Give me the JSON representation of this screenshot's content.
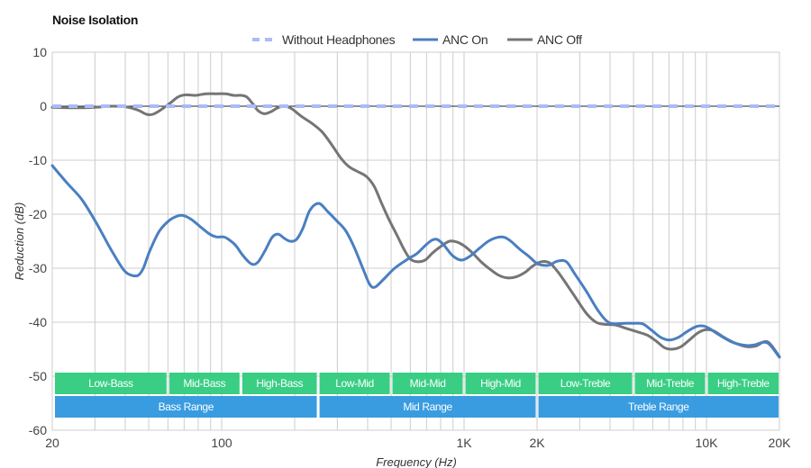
{
  "chart_data": {
    "type": "line",
    "title": "Noise Isolation",
    "xlabel": "Frequency (Hz)",
    "ylabel": "Reduction (dB)",
    "xscale": "log",
    "xlim": [
      20,
      20000
    ],
    "ylim": [
      -60,
      10
    ],
    "grid": true,
    "legend_position": "top-center",
    "x_ticks": [
      {
        "value": 20,
        "label": "20"
      },
      {
        "value": 100,
        "label": "100"
      },
      {
        "value": 1000,
        "label": "1K"
      },
      {
        "value": 2000,
        "label": "2K"
      },
      {
        "value": 10000,
        "label": "10K"
      },
      {
        "value": 20000,
        "label": "20K"
      }
    ],
    "y_ticks": [
      {
        "value": 10,
        "label": "10"
      },
      {
        "value": 0,
        "label": "0"
      },
      {
        "value": -10,
        "label": "-10"
      },
      {
        "value": -20,
        "label": "-20"
      },
      {
        "value": -30,
        "label": "-30"
      },
      {
        "value": -40,
        "label": "-40"
      },
      {
        "value": -50,
        "label": "-50"
      },
      {
        "value": -60,
        "label": "-60"
      }
    ],
    "x_gridlines": [
      20,
      30,
      40,
      50,
      60,
      70,
      80,
      90,
      100,
      200,
      300,
      400,
      500,
      600,
      700,
      800,
      900,
      1000,
      2000,
      3000,
      4000,
      5000,
      6000,
      7000,
      8000,
      9000,
      10000,
      20000
    ],
    "series": [
      {
        "name": "Without Headphones",
        "color": "#aabbf5",
        "style": "dashed",
        "points": [
          [
            20,
            0
          ],
          [
            20000,
            0
          ]
        ]
      },
      {
        "name": "ANC On",
        "color": "#4a7fc1",
        "style": "solid",
        "points": [
          [
            20,
            -11.0
          ],
          [
            23,
            -14.2
          ],
          [
            26.5,
            -17.3
          ],
          [
            30.3,
            -21.5
          ],
          [
            34.9,
            -26.5
          ],
          [
            39.4,
            -30.3
          ],
          [
            42.4,
            -31.3
          ],
          [
            45.3,
            -31.3
          ],
          [
            47.5,
            -30.0
          ],
          [
            50.3,
            -27.0
          ],
          [
            55.0,
            -23.3
          ],
          [
            60.6,
            -21.2
          ],
          [
            66.1,
            -20.3
          ],
          [
            70.1,
            -20.3
          ],
          [
            75.1,
            -21.0
          ],
          [
            81.5,
            -22.3
          ],
          [
            89.3,
            -23.7
          ],
          [
            94.9,
            -24.2
          ],
          [
            101.6,
            -24.2
          ],
          [
            105.4,
            -24.5
          ],
          [
            113.8,
            -25.7
          ],
          [
            121.6,
            -27.5
          ],
          [
            130.5,
            -29.0
          ],
          [
            136.2,
            -29.3
          ],
          [
            142.2,
            -28.7
          ],
          [
            150.8,
            -26.8
          ],
          [
            161.4,
            -24.3
          ],
          [
            171.2,
            -23.7
          ],
          [
            181.7,
            -24.5
          ],
          [
            191.4,
            -25.0
          ],
          [
            203.2,
            -24.7
          ],
          [
            215.8,
            -22.7
          ],
          [
            231.0,
            -19.3
          ],
          [
            251.3,
            -18.0
          ],
          [
            273.6,
            -19.5
          ],
          [
            297.8,
            -21.2
          ],
          [
            324.2,
            -23.0
          ],
          [
            352.9,
            -26.2
          ],
          [
            384.2,
            -30.3
          ],
          [
            407.9,
            -33.0
          ],
          [
            429.0,
            -33.5
          ],
          [
            466.9,
            -32.0
          ],
          [
            517.0,
            -30.0
          ],
          [
            586.6,
            -28.3
          ],
          [
            638.6,
            -27.3
          ],
          [
            695.2,
            -25.7
          ],
          [
            738.1,
            -24.8
          ],
          [
            776.4,
            -24.7
          ],
          [
            824.4,
            -25.7
          ],
          [
            897.3,
            -27.7
          ],
          [
            976.7,
            -28.5
          ],
          [
            1063,
            -27.7
          ],
          [
            1157,
            -26.3
          ],
          [
            1260,
            -25.0
          ],
          [
            1371,
            -24.3
          ],
          [
            1469,
            -24.3
          ],
          [
            1559,
            -25.0
          ],
          [
            1698,
            -26.5
          ],
          [
            1848,
            -27.8
          ],
          [
            2011,
            -29.2
          ],
          [
            2189,
            -29.5
          ],
          [
            2284,
            -29.3
          ],
          [
            2426,
            -28.7
          ],
          [
            2641,
            -28.8
          ],
          [
            2875,
            -31.2
          ],
          [
            3187,
            -34.2
          ],
          [
            3565,
            -37.8
          ],
          [
            3879,
            -39.8
          ],
          [
            4155,
            -40.3
          ],
          [
            4601,
            -40.2
          ],
          [
            5011,
            -40.2
          ],
          [
            5459,
            -40.3
          ],
          [
            5941,
            -41.5
          ],
          [
            6467,
            -42.8
          ],
          [
            7040,
            -43.3
          ],
          [
            7663,
            -42.8
          ],
          [
            8339,
            -41.7
          ],
          [
            9078,
            -40.8
          ],
          [
            9713,
            -40.7
          ],
          [
            10315,
            -41.2
          ],
          [
            11228,
            -42.3
          ],
          [
            12768,
            -43.7
          ],
          [
            14521,
            -44.3
          ],
          [
            15803,
            -44.2
          ],
          [
            17205,
            -43.7
          ],
          [
            18268,
            -44.2
          ],
          [
            20000,
            -46.5
          ]
        ]
      },
      {
        "name": "ANC Off",
        "color": "#757575",
        "style": "solid",
        "points": [
          [
            20,
            -0.2
          ],
          [
            25,
            -0.3
          ],
          [
            30,
            -0.2
          ],
          [
            35,
            0.0
          ],
          [
            40,
            -0.1
          ],
          [
            45,
            -0.7
          ],
          [
            49,
            -1.5
          ],
          [
            52,
            -1.5
          ],
          [
            56,
            -0.7
          ],
          [
            61,
            0.5
          ],
          [
            66,
            1.7
          ],
          [
            71,
            2.1
          ],
          [
            78,
            2.0
          ],
          [
            86,
            2.3
          ],
          [
            95,
            2.3
          ],
          [
            104,
            2.3
          ],
          [
            112,
            2.0
          ],
          [
            121,
            2.0
          ],
          [
            127,
            1.7
          ],
          [
            134,
            0.5
          ],
          [
            141,
            -0.8
          ],
          [
            150,
            -1.4
          ],
          [
            160,
            -1.0
          ],
          [
            170,
            -0.3
          ],
          [
            182,
            0.0
          ],
          [
            195,
            -0.5
          ],
          [
            212,
            -1.8
          ],
          [
            236,
            -3.2
          ],
          [
            260,
            -4.8
          ],
          [
            285,
            -7.2
          ],
          [
            310,
            -9.6
          ],
          [
            335,
            -11.2
          ],
          [
            360,
            -12.0
          ],
          [
            395,
            -13.0
          ],
          [
            425,
            -14.8
          ],
          [
            455,
            -17.8
          ],
          [
            490,
            -21.0
          ],
          [
            530,
            -24.0
          ],
          [
            565,
            -26.5
          ],
          [
            600,
            -28.3
          ],
          [
            640,
            -28.8
          ],
          [
            690,
            -28.5
          ],
          [
            740,
            -27.2
          ],
          [
            800,
            -26.0
          ],
          [
            870,
            -25.0
          ],
          [
            940,
            -25.2
          ],
          [
            1010,
            -26.0
          ],
          [
            1090,
            -27.3
          ],
          [
            1180,
            -28.9
          ],
          [
            1280,
            -30.2
          ],
          [
            1390,
            -31.3
          ],
          [
            1510,
            -31.8
          ],
          [
            1640,
            -31.6
          ],
          [
            1780,
            -30.8
          ],
          [
            1920,
            -29.6
          ],
          [
            2080,
            -28.8
          ],
          [
            2250,
            -29.0
          ],
          [
            2440,
            -30.7
          ],
          [
            2650,
            -33.0
          ],
          [
            2900,
            -35.6
          ],
          [
            3200,
            -38.4
          ],
          [
            3500,
            -40.0
          ],
          [
            3800,
            -40.4
          ],
          [
            4200,
            -40.5
          ],
          [
            4700,
            -41.2
          ],
          [
            5200,
            -41.8
          ],
          [
            5700,
            -42.4
          ],
          [
            6200,
            -43.5
          ],
          [
            6700,
            -44.7
          ],
          [
            7200,
            -45.0
          ],
          [
            7800,
            -44.6
          ],
          [
            8500,
            -43.3
          ],
          [
            9200,
            -42.0
          ],
          [
            9900,
            -41.4
          ],
          [
            10700,
            -41.6
          ],
          [
            11700,
            -42.7
          ],
          [
            13000,
            -43.8
          ],
          [
            14500,
            -44.5
          ],
          [
            16000,
            -44.4
          ],
          [
            17300,
            -43.6
          ],
          [
            18300,
            -44.0
          ],
          [
            20000,
            -46.4
          ]
        ]
      }
    ],
    "bands": {
      "sub_ranges": [
        {
          "label": "Low-Bass",
          "from": 20,
          "to": 60,
          "color": "#33cc7f"
        },
        {
          "label": "Mid-Bass",
          "from": 60,
          "to": 120,
          "color": "#33cc7f"
        },
        {
          "label": "High-Bass",
          "from": 120,
          "to": 250,
          "color": "#33cc7f"
        },
        {
          "label": "Low-Mid",
          "from": 250,
          "to": 500,
          "color": "#33cc7f"
        },
        {
          "label": "Mid-Mid",
          "from": 500,
          "to": 1000,
          "color": "#33cc7f"
        },
        {
          "label": "High-Mid",
          "from": 1000,
          "to": 2000,
          "color": "#33cc7f"
        },
        {
          "label": "Low-Treble",
          "from": 2000,
          "to": 5000,
          "color": "#33cc7f"
        },
        {
          "label": "Mid-Treble",
          "from": 5000,
          "to": 10000,
          "color": "#33cc7f"
        },
        {
          "label": "High-Treble",
          "from": 10000,
          "to": 20000,
          "color": "#33cc7f"
        }
      ],
      "ranges": [
        {
          "label": "Bass Range",
          "from": 20,
          "to": 250,
          "color": "#3399e0"
        },
        {
          "label": "Mid Range",
          "from": 250,
          "to": 2000,
          "color": "#3399e0"
        },
        {
          "label": "Treble Range",
          "from": 2000,
          "to": 20000,
          "color": "#3399e0"
        }
      ]
    }
  }
}
